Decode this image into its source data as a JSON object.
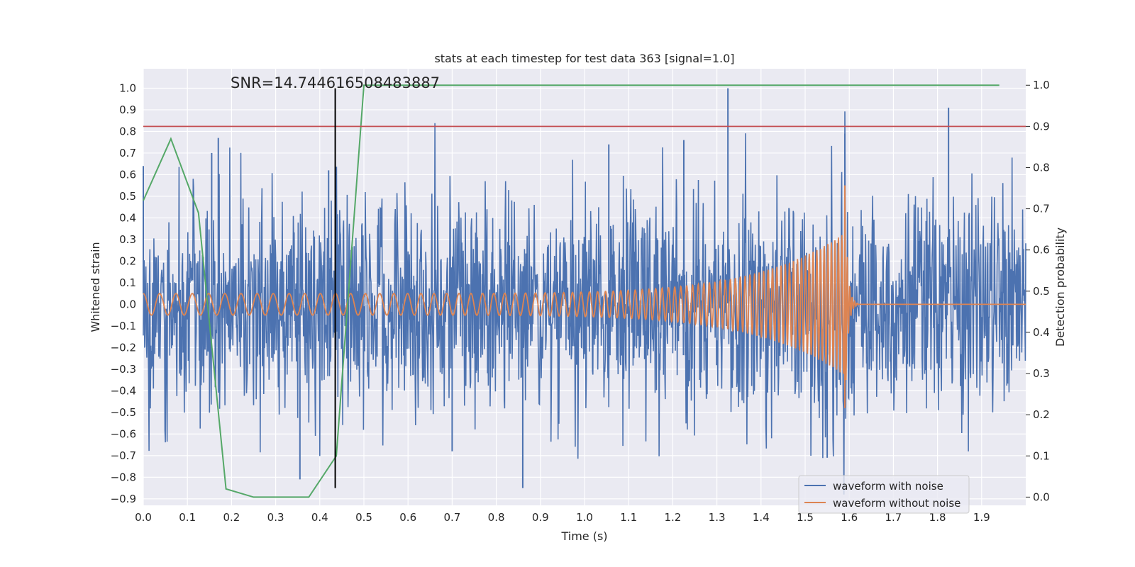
{
  "chart_data": {
    "type": "line",
    "title": "stats at each timestep for test data 363 [signal=1.0]",
    "xlabel": "Time (s)",
    "ylabel_left": "Whitened strain",
    "ylabel_right": "Detection probability",
    "annotation": "SNR=14.744616508483887",
    "xlim": [
      0.0,
      2.0
    ],
    "ylim_left": [
      -0.93,
      1.09
    ],
    "ylim_right": [
      -0.02,
      1.04
    ],
    "x_ticks": [
      "0.0",
      "0.1",
      "0.2",
      "0.3",
      "0.4",
      "0.5",
      "0.6",
      "0.7",
      "0.8",
      "0.9",
      "1.0",
      "1.1",
      "1.2",
      "1.3",
      "1.4",
      "1.5",
      "1.6",
      "1.7",
      "1.8",
      "1.9"
    ],
    "y_ticks_left": [
      "1.0",
      "0.9",
      "0.8",
      "0.7",
      "0.6",
      "0.5",
      "0.4",
      "0.3",
      "0.2",
      "0.1",
      "0.0",
      "−0.1",
      "−0.2",
      "−0.3",
      "−0.4",
      "−0.5",
      "−0.6",
      "−0.7",
      "−0.8",
      "−0.9"
    ],
    "y_ticks_right": [
      "1.0",
      "0.9",
      "0.8",
      "0.7",
      "0.6",
      "0.5",
      "0.4",
      "0.3",
      "0.2",
      "0.1",
      "0.0"
    ],
    "threshold": 0.9,
    "vline_x": 0.435,
    "legend": [
      "waveform with noise",
      "waveform without noise"
    ],
    "legend_position": "lower-right",
    "series": [
      {
        "name": "waveform with noise",
        "color": "#4c72b0",
        "axis": "left",
        "noise_std": 0.25,
        "spikes": [
          {
            "x": 0.0,
            "y": 0.64
          },
          {
            "x": 0.17,
            "y": 0.77
          },
          {
            "x": 0.155,
            "y": 0.7
          },
          {
            "x": 0.355,
            "y": -0.81
          },
          {
            "x": 0.42,
            "y": 0.62
          },
          {
            "x": 0.7,
            "y": -0.68
          },
          {
            "x": 0.86,
            "y": -0.85
          },
          {
            "x": 1.325,
            "y": 1.0
          },
          {
            "x": 1.225,
            "y": 0.76
          },
          {
            "x": 1.55,
            "y": -0.71
          },
          {
            "x": 1.59,
            "y": 0.79
          },
          {
            "x": 1.825,
            "y": 0.91
          },
          {
            "x": 1.055,
            "y": 0.74
          }
        ]
      },
      {
        "name": "waveform without noise",
        "color": "#dd8452",
        "axis": "left",
        "chirp": {
          "f0": 27,
          "f_merge": 130,
          "t_merge": 1.59,
          "a0": 0.05,
          "a_peak": 0.55,
          "a_min": -0.48,
          "ringdown_end": 1.62
        }
      },
      {
        "name": "detection probability",
        "color": "#55a868",
        "axis": "right",
        "x": [
          0.0,
          0.0625,
          0.125,
          0.1875,
          0.25,
          0.3125,
          0.375,
          0.4375,
          0.5,
          1.94
        ],
        "y": [
          0.72,
          0.87,
          0.69,
          0.02,
          0.0,
          0.0,
          0.0,
          0.1,
          1.0,
          1.0
        ]
      },
      {
        "name": "threshold",
        "color": "#c44e52",
        "axis": "right",
        "x": [
          0.0,
          2.0
        ],
        "y": [
          0.9,
          0.9
        ]
      }
    ]
  }
}
